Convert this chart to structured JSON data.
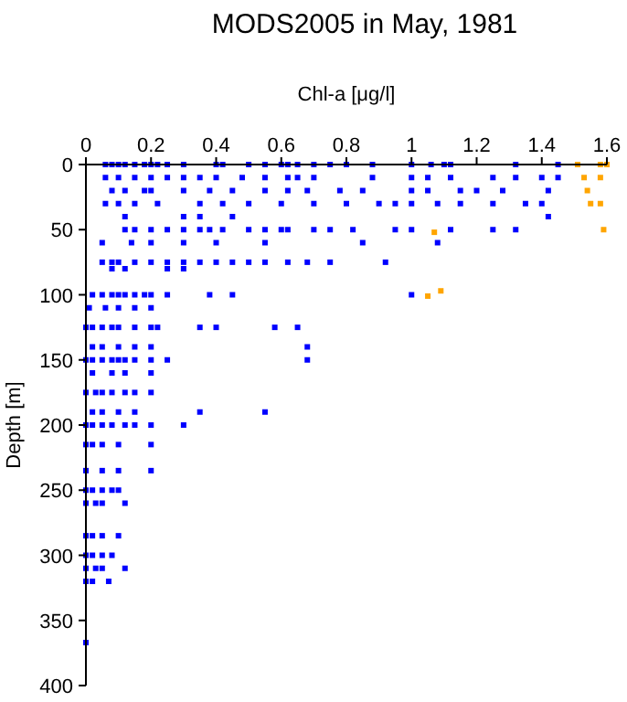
{
  "chart_data": {
    "type": "scatter",
    "title": "MODS2005 in May, 1981",
    "xlabel": "Chl-a [μg/l]",
    "ylabel": "Depth [m]",
    "xlim": [
      0,
      1.6
    ],
    "xticks": [
      0,
      0.2,
      0.4,
      0.6,
      0.8,
      1,
      1.2,
      1.4,
      1.6
    ],
    "ylim": [
      400,
      0
    ],
    "yticks": [
      0,
      50,
      100,
      150,
      200,
      250,
      300,
      350,
      400
    ],
    "marker": "square",
    "grid": false,
    "series": [
      {
        "color": "#0000ff",
        "x": [
          0.06,
          0.08,
          0.1,
          0.12,
          0.15,
          0.18,
          0.2,
          0.22,
          0.25,
          0.3,
          0.4,
          0.42,
          0.5,
          0.55,
          0.6,
          0.62,
          0.65,
          0.7,
          0.75,
          0.8,
          0.88,
          1.0,
          1.06,
          1.1,
          1.12,
          1.32,
          1.45,
          0.06,
          0.1,
          0.15,
          0.2,
          0.25,
          0.3,
          0.35,
          0.4,
          0.48,
          0.55,
          0.62,
          0.65,
          0.7,
          0.88,
          1.0,
          1.05,
          1.12,
          1.25,
          1.32,
          1.4,
          1.45,
          0.08,
          0.12,
          0.18,
          0.2,
          0.3,
          0.38,
          0.45,
          0.55,
          0.62,
          0.68,
          0.78,
          0.85,
          1.0,
          1.05,
          1.15,
          1.2,
          1.28,
          1.42,
          0.06,
          0.1,
          0.15,
          0.22,
          0.35,
          0.42,
          0.5,
          0.6,
          0.7,
          0.8,
          0.9,
          0.95,
          1.0,
          1.08,
          1.15,
          1.25,
          1.35,
          1.4,
          0.12,
          0.3,
          0.35,
          0.45,
          1.42,
          0.12,
          0.15,
          0.2,
          0.25,
          0.3,
          0.35,
          0.38,
          0.42,
          0.5,
          0.55,
          0.6,
          0.62,
          0.7,
          0.75,
          0.82,
          0.95,
          1.0,
          1.12,
          1.25,
          1.32,
          0.05,
          0.14,
          0.2,
          0.3,
          0.4,
          0.55,
          0.85,
          1.08,
          0.05,
          0.08,
          0.1,
          0.15,
          0.2,
          0.25,
          0.3,
          0.35,
          0.4,
          0.45,
          0.5,
          0.55,
          0.62,
          0.68,
          0.75,
          0.92,
          0.08,
          0.12,
          0.25,
          0.3,
          0.02,
          0.05,
          0.08,
          0.1,
          0.12,
          0.15,
          0.18,
          0.2,
          0.25,
          0.38,
          0.45,
          1.0,
          0.01,
          0.06,
          0.1,
          0.15,
          0.2,
          0.0,
          0.02,
          0.05,
          0.08,
          0.1,
          0.15,
          0.2,
          0.22,
          0.35,
          0.4,
          0.58,
          0.65,
          0.02,
          0.05,
          0.1,
          0.15,
          0.2,
          0.68,
          0.0,
          0.02,
          0.05,
          0.08,
          0.1,
          0.12,
          0.15,
          0.2,
          0.25,
          0.68,
          0.02,
          0.08,
          0.12,
          0.2,
          0.0,
          0.03,
          0.05,
          0.08,
          0.12,
          0.15,
          0.2,
          0.02,
          0.05,
          0.1,
          0.15,
          0.35,
          0.55,
          0.0,
          0.02,
          0.05,
          0.08,
          0.12,
          0.15,
          0.2,
          0.3,
          0.0,
          0.02,
          0.05,
          0.1,
          0.2,
          0.0,
          0.05,
          0.1,
          0.2,
          0.0,
          0.02,
          0.05,
          0.08,
          0.1,
          0.0,
          0.03,
          0.05,
          0.12,
          0.0,
          0.02,
          0.05,
          0.1,
          0.0,
          0.02,
          0.05,
          0.08,
          0.0,
          0.03,
          0.05,
          0.12,
          0.0,
          0.02,
          0.07,
          0.0
        ],
        "values": [
          0,
          0,
          0,
          0,
          0,
          0,
          0,
          0,
          0,
          0,
          0,
          0,
          0,
          0,
          0,
          0,
          0,
          0,
          0,
          0,
          0,
          0,
          0,
          0,
          0,
          0,
          0,
          10,
          10,
          10,
          10,
          10,
          10,
          10,
          10,
          10,
          10,
          10,
          10,
          10,
          10,
          10,
          10,
          10,
          10,
          10,
          10,
          10,
          20,
          20,
          20,
          20,
          20,
          20,
          20,
          20,
          20,
          20,
          20,
          20,
          20,
          20,
          20,
          20,
          20,
          20,
          30,
          30,
          30,
          30,
          30,
          30,
          30,
          30,
          30,
          30,
          30,
          30,
          30,
          30,
          30,
          30,
          30,
          30,
          40,
          40,
          40,
          40,
          40,
          50,
          50,
          50,
          50,
          50,
          50,
          50,
          50,
          50,
          50,
          50,
          50,
          50,
          50,
          50,
          50,
          50,
          50,
          50,
          50,
          60,
          60,
          60,
          60,
          60,
          60,
          60,
          60,
          75,
          75,
          75,
          75,
          75,
          75,
          75,
          75,
          75,
          75,
          75,
          75,
          75,
          75,
          75,
          75,
          80,
          80,
          80,
          80,
          100,
          100,
          100,
          100,
          100,
          100,
          100,
          100,
          100,
          100,
          100,
          100,
          110,
          110,
          110,
          110,
          110,
          125,
          125,
          125,
          125,
          125,
          125,
          125,
          125,
          125,
          125,
          125,
          125,
          140,
          140,
          140,
          140,
          140,
          140,
          150,
          150,
          150,
          150,
          150,
          150,
          150,
          150,
          150,
          150,
          160,
          160,
          160,
          160,
          175,
          175,
          175,
          175,
          175,
          175,
          175,
          190,
          190,
          190,
          190,
          190,
          190,
          200,
          200,
          200,
          200,
          200,
          200,
          200,
          200,
          215,
          215,
          215,
          215,
          215,
          235,
          235,
          235,
          235,
          250,
          250,
          250,
          250,
          250,
          260,
          260,
          260,
          260,
          285,
          285,
          285,
          285,
          300,
          300,
          300,
          300,
          310,
          310,
          310,
          310,
          320,
          320,
          320,
          367
        ]
      },
      {
        "color": "#ffa500",
        "x": [
          1.51,
          1.58,
          1.6,
          1.53,
          1.58,
          1.54,
          1.55,
          1.58,
          1.07,
          1.59,
          1.09,
          1.05
        ],
        "values": [
          0,
          0,
          0,
          10,
          10,
          20,
          30,
          30,
          52,
          50,
          97,
          101
        ]
      }
    ]
  }
}
